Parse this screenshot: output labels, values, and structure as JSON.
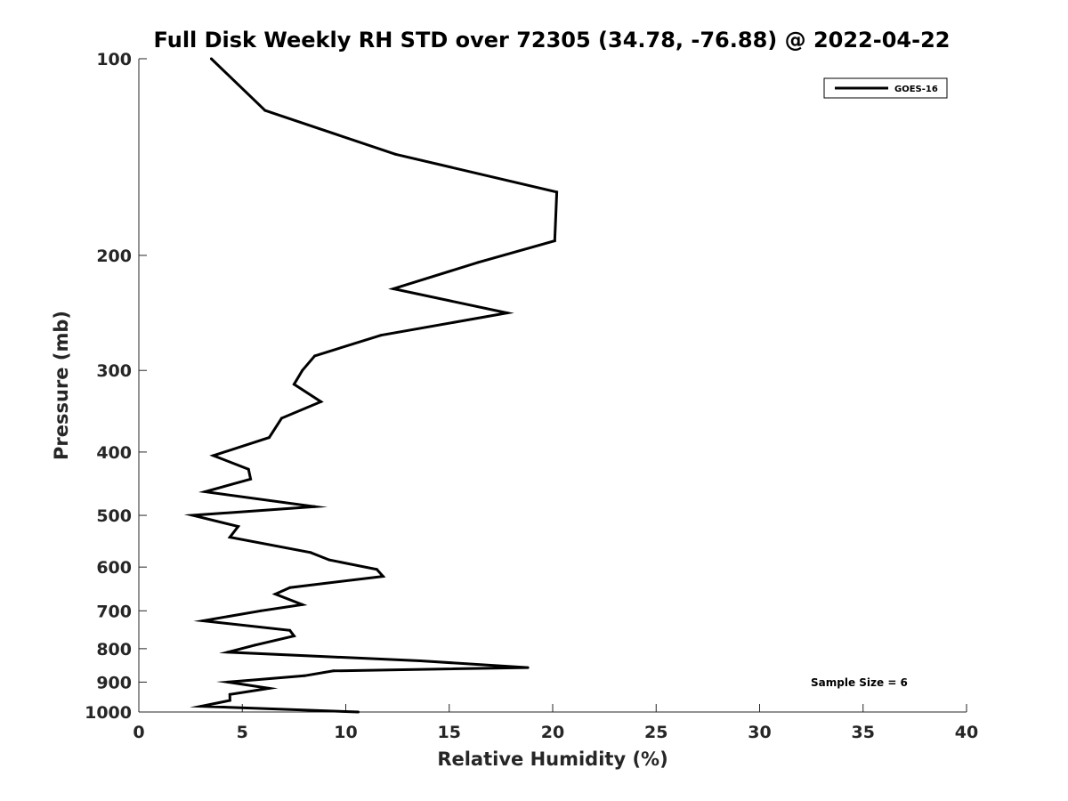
{
  "chart_data": {
    "type": "line",
    "title": "Full Disk Weekly RH STD over 72305 (34.78, -76.88) @ 2022-04-22",
    "xlabel": "Relative Humidity (%)",
    "ylabel": "Pressure (mb)",
    "xlim": [
      0,
      40
    ],
    "ylim": [
      100,
      1000
    ],
    "y_scale": "log",
    "y_reversed": true,
    "x_ticks": [
      0,
      5,
      10,
      15,
      20,
      25,
      30,
      35,
      40
    ],
    "x_tick_labels": [
      "0",
      "5",
      "10",
      "15",
      "20",
      "25",
      "30",
      "35",
      "40"
    ],
    "y_ticks": [
      100,
      200,
      300,
      400,
      500,
      600,
      700,
      800,
      900,
      1000
    ],
    "y_tick_labels": [
      "100",
      "200",
      "300",
      "400",
      "500",
      "600",
      "700",
      "800",
      "900",
      "1000"
    ],
    "grid": false,
    "legend_position": "top-right",
    "annotation": "Sample Size = 6",
    "series": [
      {
        "name": "GOES-16",
        "color": "#000000",
        "x": [
          3.5,
          6.1,
          12.4,
          20.2,
          20.1,
          16.4,
          12.3,
          17.8,
          11.7,
          8.5,
          7.9,
          7.5,
          8.8,
          6.9,
          6.3,
          3.6,
          5.3,
          5.4,
          3.2,
          8.5,
          2.6,
          4.8,
          4.4,
          8.3,
          9.2,
          11.5,
          11.8,
          7.3,
          6.6,
          7.9,
          5.9,
          3.1,
          7.3,
          7.5,
          5.6,
          4.3,
          13.6,
          18.8,
          9.4,
          8.0,
          4.3,
          6.3,
          4.4,
          4.4,
          3.0,
          10.6
        ],
        "y": [
          100,
          120,
          140,
          160,
          190,
          205,
          225,
          245,
          265,
          285,
          300,
          315,
          335,
          355,
          380,
          405,
          425,
          440,
          460,
          485,
          500,
          520,
          540,
          570,
          585,
          605,
          620,
          645,
          660,
          685,
          700,
          725,
          750,
          765,
          790,
          810,
          835,
          855,
          865,
          880,
          900,
          920,
          940,
          960,
          980,
          1000
        ]
      }
    ]
  }
}
